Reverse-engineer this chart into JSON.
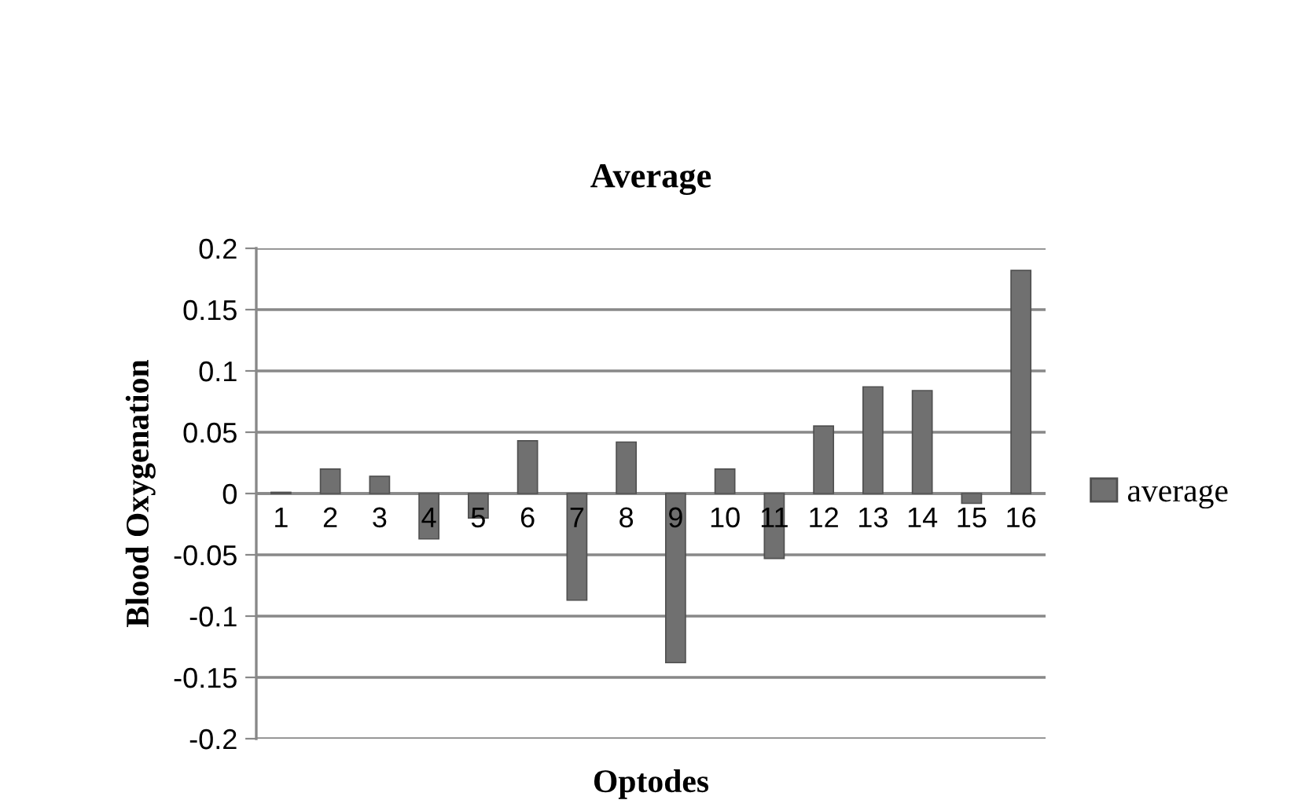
{
  "chart_data": {
    "type": "bar",
    "title": "Average",
    "xlabel": "Optodes",
    "ylabel": "Blood Oxygenation",
    "categories": [
      "1",
      "2",
      "3",
      "4",
      "5",
      "6",
      "7",
      "8",
      "9",
      "10",
      "11",
      "12",
      "13",
      "14",
      "15",
      "16"
    ],
    "series": [
      {
        "name": "average",
        "color": "#707070",
        "values": [
          0.001,
          0.02,
          0.014,
          -0.037,
          -0.02,
          0.043,
          -0.087,
          0.042,
          -0.138,
          0.02,
          -0.053,
          0.055,
          0.087,
          0.084,
          -0.008,
          0.182
        ]
      }
    ],
    "ylim": [
      -0.2,
      0.2
    ],
    "yticks": [
      -0.2,
      -0.15,
      -0.1,
      -0.05,
      0,
      0.05,
      0.1,
      0.15,
      0.2
    ],
    "grid": "y",
    "legend": "right"
  }
}
